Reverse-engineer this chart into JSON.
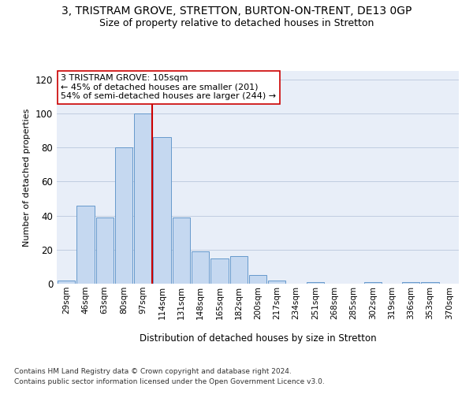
{
  "title1": "3, TRISTRAM GROVE, STRETTON, BURTON-ON-TRENT, DE13 0GP",
  "title2": "Size of property relative to detached houses in Stretton",
  "xlabel": "Distribution of detached houses by size in Stretton",
  "ylabel": "Number of detached properties",
  "categories": [
    "29sqm",
    "46sqm",
    "63sqm",
    "80sqm",
    "97sqm",
    "114sqm",
    "131sqm",
    "148sqm",
    "165sqm",
    "182sqm",
    "200sqm",
    "217sqm",
    "234sqm",
    "251sqm",
    "268sqm",
    "285sqm",
    "302sqm",
    "319sqm",
    "336sqm",
    "353sqm",
    "370sqm"
  ],
  "values": [
    2,
    46,
    39,
    80,
    100,
    86,
    39,
    19,
    15,
    16,
    5,
    2,
    0,
    1,
    0,
    0,
    1,
    0,
    1,
    1,
    0
  ],
  "bar_color": "#c5d8f0",
  "bar_edge_color": "#6699cc",
  "vline_x_index": 4.5,
  "vline_color": "#cc0000",
  "annotation_text": "3 TRISTRAM GROVE: 105sqm\n← 45% of detached houses are smaller (201)\n54% of semi-detached houses are larger (244) →",
  "annotation_box_color": "#ffffff",
  "annotation_box_edge": "#cc0000",
  "ylim": [
    0,
    125
  ],
  "yticks": [
    0,
    20,
    40,
    60,
    80,
    100,
    120
  ],
  "footer1": "Contains HM Land Registry data © Crown copyright and database right 2024.",
  "footer2": "Contains public sector information licensed under the Open Government Licence v3.0.",
  "background_color": "#e8eef8",
  "title1_fontsize": 10,
  "title2_fontsize": 9
}
